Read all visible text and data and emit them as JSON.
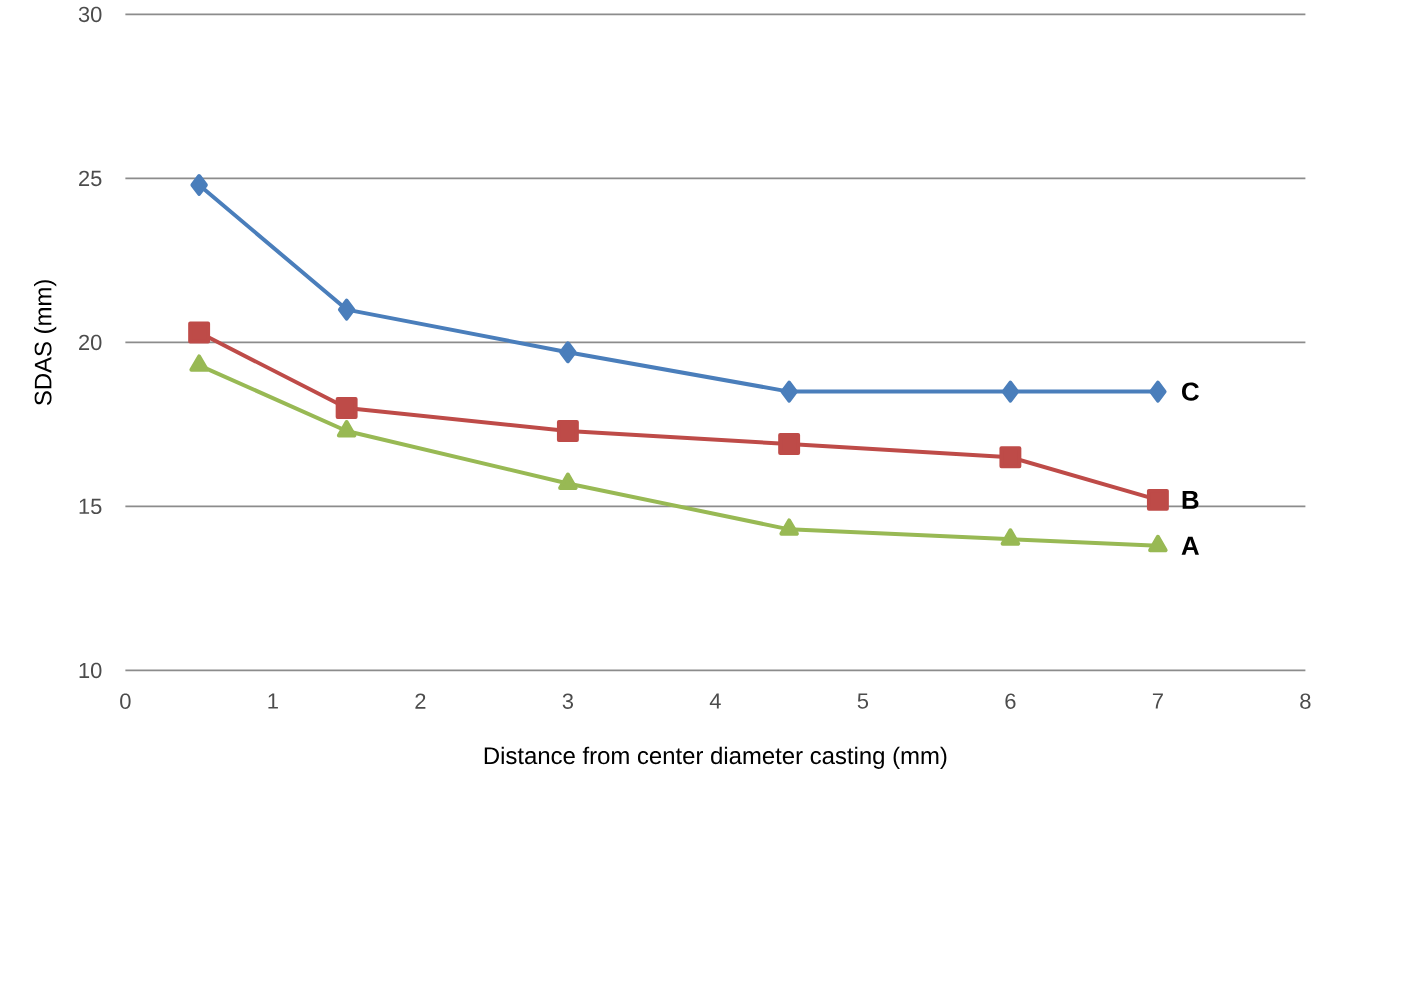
{
  "chart_data": {
    "type": "line",
    "xlabel": "Distance from center diameter casting (mm)",
    "ylabel": "SDAS (mm)",
    "x": [
      0.5,
      1.5,
      3,
      4.5,
      6,
      7
    ],
    "series": [
      {
        "name": "C",
        "color": "#4a7ebb",
        "marker": "diamond",
        "values": [
          24.8,
          21.0,
          19.7,
          18.5,
          18.5,
          18.5
        ]
      },
      {
        "name": "B",
        "color": "#be4b48",
        "marker": "square",
        "values": [
          20.3,
          18.0,
          17.3,
          16.9,
          16.5,
          15.2
        ]
      },
      {
        "name": "A",
        "color": "#98b954",
        "marker": "triangle",
        "values": [
          19.3,
          17.3,
          15.7,
          14.3,
          14.0,
          13.8
        ]
      }
    ],
    "xlim": [
      0,
      8
    ],
    "xticks": [
      0,
      1,
      2,
      3,
      4,
      5,
      6,
      7,
      8
    ],
    "ylim": [
      10,
      30
    ],
    "yticks": [
      10,
      15,
      20,
      25,
      30
    ],
    "grid": "y",
    "line_style": "solid"
  }
}
